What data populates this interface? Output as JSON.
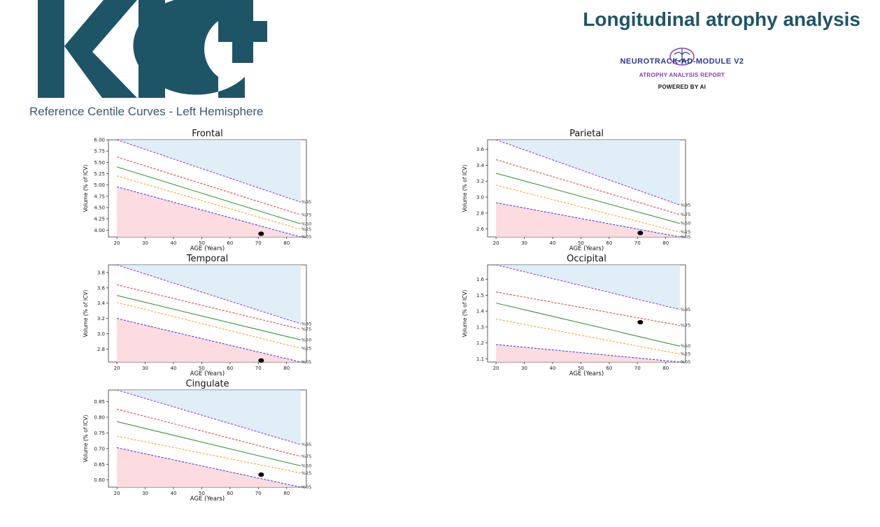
{
  "header": {
    "logo_text": "KIC+",
    "subtitle": "Reference Centile Curves - Left Hemisphere",
    "report_title": "Longitudinal atrophy analysis",
    "module_name": "NEUROTRACK-AD-MODULE V2",
    "module_sub": "ATROPHY ANALYSIS REPORT",
    "module_powered": "POWERED BY AI",
    "colors": {
      "brand": "#1e5566",
      "module": "#2b3a8c",
      "accent": "#8a3fb0"
    }
  },
  "chart_data": [
    {
      "type": "line",
      "title": "Frontal",
      "xlabel": "AGE (Years)",
      "ylabel": "Volume (% of ICV)",
      "xlim": [
        17,
        87
      ],
      "ylim": [
        3.85,
        6.0
      ],
      "yticks": [
        4.0,
        4.25,
        4.5,
        4.75,
        5.0,
        5.25,
        5.5,
        5.75,
        6.0
      ],
      "ytick_labels": [
        "4.00",
        "4.25",
        "4.50",
        "4.75",
        "5.00",
        "5.25",
        "5.50",
        "5.75",
        "6.00"
      ],
      "xticks": [
        20,
        30,
        40,
        50,
        60,
        70,
        80
      ],
      "x": [
        20,
        85
      ],
      "series": [
        {
          "name": "%95",
          "values": [
            6.0,
            4.62
          ],
          "color": "#8a2be2",
          "dashed": true
        },
        {
          "name": "%75",
          "values": [
            5.62,
            4.34
          ],
          "color": "#e03030",
          "dashed": true
        },
        {
          "name": "%50",
          "values": [
            5.4,
            4.14
          ],
          "color": "#2e8b2e",
          "dashed": false
        },
        {
          "name": "%25",
          "values": [
            5.2,
            4.02
          ],
          "color": "#f0a020",
          "dashed": true
        },
        {
          "name": "%05",
          "values": [
            4.96,
            3.85
          ],
          "color": "#3030e0",
          "dashed": true
        }
      ],
      "point": {
        "x": 71,
        "y": 3.92
      }
    },
    {
      "type": "line",
      "title": "Parietal",
      "xlabel": "AGE (Years)",
      "ylabel": "Volume (% of ICV)",
      "xlim": [
        17,
        87
      ],
      "ylim": [
        2.5,
        3.72
      ],
      "yticks": [
        2.6,
        2.8,
        3.0,
        3.2,
        3.4,
        3.6
      ],
      "ytick_labels": [
        "2.6",
        "2.8",
        "3.0",
        "3.2",
        "3.4",
        "3.6"
      ],
      "xticks": [
        20,
        30,
        40,
        50,
        60,
        70,
        80
      ],
      "x": [
        20,
        85
      ],
      "series": [
        {
          "name": "%95",
          "values": [
            3.72,
            2.9
          ],
          "color": "#8a2be2",
          "dashed": true
        },
        {
          "name": "%75",
          "values": [
            3.47,
            2.78
          ],
          "color": "#e03030",
          "dashed": true
        },
        {
          "name": "%50",
          "values": [
            3.3,
            2.67
          ],
          "color": "#2e8b2e",
          "dashed": false
        },
        {
          "name": "%25",
          "values": [
            3.15,
            2.56
          ],
          "color": "#f0a020",
          "dashed": true
        },
        {
          "name": "%05",
          "values": [
            2.93,
            2.5
          ],
          "color": "#3030e0",
          "dashed": true
        }
      ],
      "point": {
        "x": 71,
        "y": 2.55
      }
    },
    {
      "type": "line",
      "title": "Temporal",
      "xlabel": "AGE (Years)",
      "ylabel": "Volume (% of ICV)",
      "xlim": [
        17,
        87
      ],
      "ylim": [
        2.63,
        3.9
      ],
      "yticks": [
        2.8,
        3.0,
        3.2,
        3.4,
        3.6,
        3.8
      ],
      "ytick_labels": [
        "2.8",
        "3.0",
        "3.2",
        "3.4",
        "3.6",
        "3.8"
      ],
      "xticks": [
        20,
        30,
        40,
        50,
        60,
        70,
        80
      ],
      "x": [
        20,
        85
      ],
      "series": [
        {
          "name": "%95",
          "values": [
            3.9,
            3.13
          ],
          "color": "#8a2be2",
          "dashed": true
        },
        {
          "name": "%75",
          "values": [
            3.64,
            3.06
          ],
          "color": "#e03030",
          "dashed": true
        },
        {
          "name": "%50",
          "values": [
            3.5,
            2.92
          ],
          "color": "#2e8b2e",
          "dashed": false
        },
        {
          "name": "%25",
          "values": [
            3.41,
            2.81
          ],
          "color": "#f0a020",
          "dashed": true
        },
        {
          "name": "%05",
          "values": [
            3.2,
            2.63
          ],
          "color": "#3030e0",
          "dashed": true
        }
      ],
      "point": {
        "x": 71,
        "y": 2.65
      }
    },
    {
      "type": "line",
      "title": "Occipital",
      "xlabel": "AGE (Years)",
      "ylabel": "Volume (% of ICV)",
      "xlim": [
        17,
        87
      ],
      "ylim": [
        1.08,
        1.69
      ],
      "yticks": [
        1.1,
        1.2,
        1.3,
        1.4,
        1.5,
        1.6
      ],
      "ytick_labels": [
        "1.1",
        "1.2",
        "1.3",
        "1.4",
        "1.5",
        "1.6"
      ],
      "xticks": [
        20,
        30,
        40,
        50,
        60,
        70,
        80
      ],
      "x": [
        20,
        85
      ],
      "series": [
        {
          "name": "%95",
          "values": [
            1.69,
            1.41
          ],
          "color": "#8a2be2",
          "dashed": true
        },
        {
          "name": "%75",
          "values": [
            1.52,
            1.31
          ],
          "color": "#e03030",
          "dashed": true
        },
        {
          "name": "%50",
          "values": [
            1.45,
            1.18
          ],
          "color": "#2e8b2e",
          "dashed": false
        },
        {
          "name": "%25",
          "values": [
            1.35,
            1.13
          ],
          "color": "#f0a020",
          "dashed": true
        },
        {
          "name": "%05",
          "values": [
            1.19,
            1.08
          ],
          "color": "#3030e0",
          "dashed": true
        }
      ],
      "point": {
        "x": 71,
        "y": 1.33
      }
    },
    {
      "type": "line",
      "title": "Cingulate",
      "xlabel": "AGE (Years)",
      "ylabel": "Volume (% of ICV)",
      "xlim": [
        17,
        87
      ],
      "ylim": [
        0.577,
        0.887
      ],
      "yticks": [
        0.6,
        0.65,
        0.7,
        0.75,
        0.8,
        0.85
      ],
      "ytick_labels": [
        "0.60",
        "0.65",
        "0.70",
        "0.75",
        "0.80",
        "0.85"
      ],
      "xticks": [
        20,
        30,
        40,
        50,
        60,
        70,
        80
      ],
      "x": [
        20,
        85
      ],
      "series": [
        {
          "name": "%95",
          "values": [
            0.887,
            0.713
          ],
          "color": "#8a2be2",
          "dashed": true
        },
        {
          "name": "%75",
          "values": [
            0.826,
            0.675
          ],
          "color": "#e03030",
          "dashed": true
        },
        {
          "name": "%50",
          "values": [
            0.786,
            0.645
          ],
          "color": "#2e8b2e",
          "dashed": false
        },
        {
          "name": "%25",
          "values": [
            0.74,
            0.622
          ],
          "color": "#f0a020",
          "dashed": true
        },
        {
          "name": "%05",
          "values": [
            0.703,
            0.577
          ],
          "color": "#3030e0",
          "dashed": true
        }
      ],
      "point": {
        "x": 71,
        "y": 0.617
      }
    }
  ]
}
